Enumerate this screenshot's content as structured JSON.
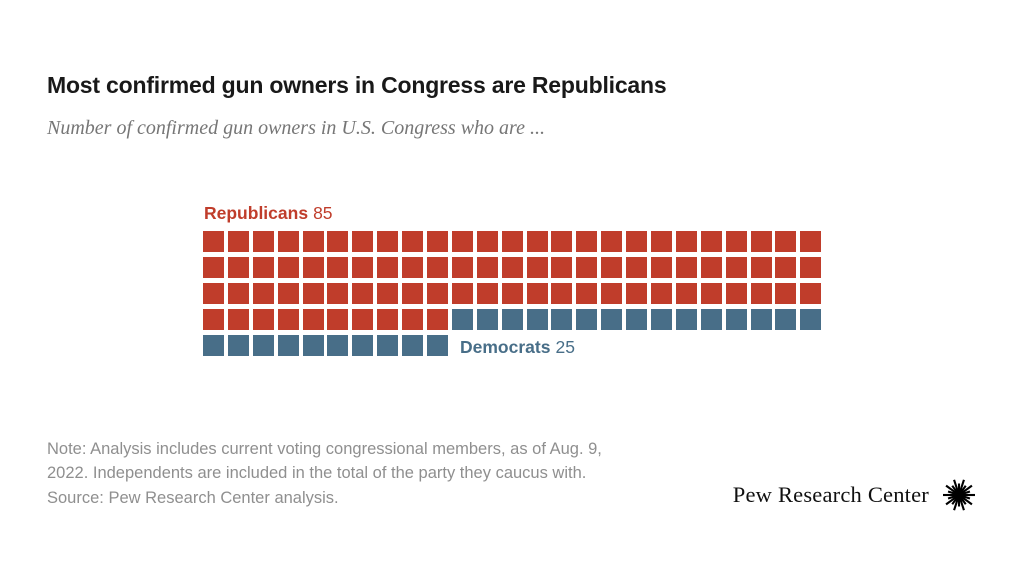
{
  "header": {
    "title": "Most confirmed gun owners in Congress are Republicans",
    "subtitle": "Number of confirmed gun owners in U.S. Congress who are ..."
  },
  "chart_data": {
    "type": "waffle",
    "unit_value": 1,
    "columns": 25,
    "rows": 5,
    "total_units": 110,
    "fill_order": "left-to-right, top-to-bottom",
    "series": [
      {
        "name": "Republicans",
        "value": 85,
        "color": "#c03d2b"
      },
      {
        "name": "Democrats",
        "value": 25,
        "color": "#486e88"
      }
    ],
    "title": "Most confirmed gun owners in Congress are Republicans",
    "subtitle": "Number of confirmed gun owners in U.S. Congress who are ...",
    "legend_position": "Republicans label above top-left of grid; Democrats label to the right of final row"
  },
  "note": {
    "lines": [
      "Note: Analysis includes current voting congressional members, as of Aug. 9,",
      "2022. Independents are included in the total of the party they caucus with.",
      "Source: Pew Research Center analysis."
    ]
  },
  "branding": {
    "logo_text": "Pew Research Center",
    "logo_icon": "sunburst-icon"
  },
  "colors": {
    "background": "#ffffff",
    "title": "#191919",
    "subtitle": "#767676",
    "note": "#8f8f8f",
    "republican_red": "#c03d2b",
    "democrat_blue": "#486e88",
    "logo": "#000000"
  }
}
